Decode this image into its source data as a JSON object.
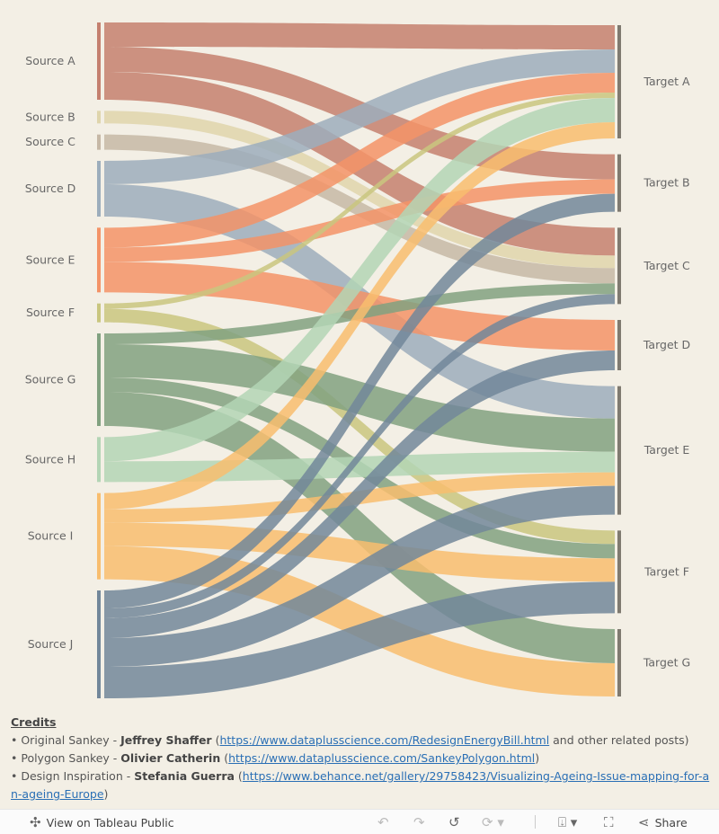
{
  "chart_data": {
    "type": "sankey",
    "sources": [
      "Source A",
      "Source B",
      "Source C",
      "Source D",
      "Source E",
      "Source F",
      "Source G",
      "Source H",
      "Source I",
      "Source J"
    ],
    "targets": [
      "Target A",
      "Target B",
      "Target C",
      "Target D",
      "Target E",
      "Target F",
      "Target G"
    ],
    "source_colors": {
      "Source A": "#c4806f",
      "Source B": "#dfd5ac",
      "Source C": "#c6b8a6",
      "Source D": "#9cadbc",
      "Source E": "#f39367",
      "Source F": "#c9c67f",
      "Source G": "#81a180",
      "Source H": "#b3d5b5",
      "Source I": "#f8bd6e",
      "Source J": "#72879a"
    },
    "target_bar_color": "#7f7a70",
    "flows": [
      {
        "source": "Source A",
        "target": "Target A",
        "value": 27
      },
      {
        "source": "Source A",
        "target": "Target B",
        "value": 28
      },
      {
        "source": "Source A",
        "target": "Target C",
        "value": 31
      },
      {
        "source": "Source B",
        "target": "Target C",
        "value": 14
      },
      {
        "source": "Source C",
        "target": "Target C",
        "value": 17
      },
      {
        "source": "Source D",
        "target": "Target A",
        "value": 26
      },
      {
        "source": "Source D",
        "target": "Target E",
        "value": 36
      },
      {
        "source": "Source E",
        "target": "Target A",
        "value": 22
      },
      {
        "source": "Source E",
        "target": "Target B",
        "value": 16
      },
      {
        "source": "Source E",
        "target": "Target D",
        "value": 34
      },
      {
        "source": "Source F",
        "target": "Target A",
        "value": 6
      },
      {
        "source": "Source F",
        "target": "Target F",
        "value": 15
      },
      {
        "source": "Source G",
        "target": "Target C",
        "value": 12
      },
      {
        "source": "Source G",
        "target": "Target E",
        "value": 37
      },
      {
        "source": "Source G",
        "target": "Target F",
        "value": 16
      },
      {
        "source": "Source G",
        "target": "Target G",
        "value": 38
      },
      {
        "source": "Source H",
        "target": "Target A",
        "value": 27
      },
      {
        "source": "Source H",
        "target": "Target E",
        "value": 23
      },
      {
        "source": "Source I",
        "target": "Target A",
        "value": 18
      },
      {
        "source": "Source I",
        "target": "Target E",
        "value": 15
      },
      {
        "source": "Source I",
        "target": "Target F",
        "value": 26
      },
      {
        "source": "Source I",
        "target": "Target G",
        "value": 37
      },
      {
        "source": "Source J",
        "target": "Target B",
        "value": 20
      },
      {
        "source": "Source J",
        "target": "Target C",
        "value": 11
      },
      {
        "source": "Source J",
        "target": "Target D",
        "value": 22
      },
      {
        "source": "Source J",
        "target": "Target E",
        "value": 32
      },
      {
        "source": "Source J",
        "target": "Target F",
        "value": 35
      }
    ]
  },
  "credits": {
    "title": "Credits",
    "lines": [
      {
        "prefix": "• Original Sankey - ",
        "name": "Jeffrey Shaffer",
        "open": " (",
        "link": "https://www.dataplusscience.com/RedesignEnergyBill.html",
        "suffix": " and other related posts)"
      },
      {
        "prefix": "• Polygon Sankey - ",
        "name": "Olivier Catherin",
        "open": " (",
        "link": "https://www.dataplusscience.com/SankeyPolygon.html",
        "suffix": ")"
      },
      {
        "prefix": "• Design Inspiration - ",
        "name": "Stefania Guerra",
        "open": " (",
        "link": "https://www.behance.net/gallery/29758423/Visualizing-Ageing-Issue-mapping-for-an-ageing-Europe",
        "suffix": ")"
      }
    ]
  },
  "toolbar": {
    "view_label": "View on Tableau Public",
    "share_label": "Share",
    "icons": [
      "tableau-logo-icon",
      "undo-icon",
      "redo-icon",
      "revert-icon",
      "refresh-icon",
      "download-icon",
      "fullscreen-icon",
      "share-icon"
    ]
  }
}
